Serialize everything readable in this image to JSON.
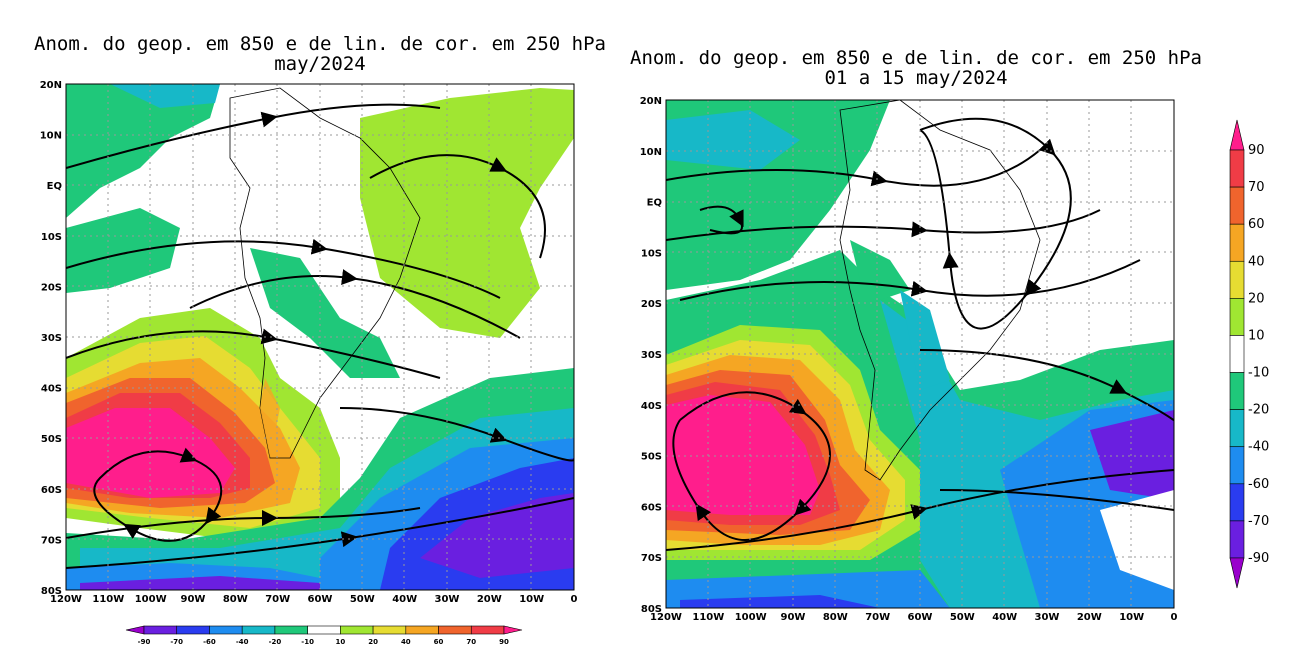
{
  "panel_left": {
    "title_line1": "Anom. do geop. em 850 e de lin. de cor. em 250 hPa",
    "title_line2": "may/2024"
  },
  "panel_right": {
    "title_line1": "Anom. do geop. em 850 e de lin. de cor. em 250 hPa",
    "title_line2": "01 a 15 may/2024"
  },
  "lat_labels": [
    "20N",
    "10N",
    "EQ",
    "10S",
    "20S",
    "30S",
    "40S",
    "50S",
    "60S",
    "70S",
    "80S"
  ],
  "lon_labels": [
    "120W",
    "110W",
    "100W",
    "90W",
    "80W",
    "70W",
    "60W",
    "50W",
    "40W",
    "30W",
    "20W",
    "10W",
    "0"
  ],
  "colorbar": {
    "levels": [
      "-90",
      "-70",
      "-60",
      "-40",
      "-20",
      "-10",
      "10",
      "20",
      "40",
      "60",
      "70",
      "90"
    ],
    "colors": {
      "lt_-90": "#9900cc",
      "-90_-70": "#6a1fe0",
      "-70_-60": "#2a3cf0",
      "-60_-40": "#1e8cf0",
      "-40_-20": "#17b8c8",
      "-20_-10": "#1fc87a",
      "-10_10": "#ffffff",
      "10_20": "#a0e632",
      "20_40": "#e6dc32",
      "40_60": "#f5a623",
      "60_70": "#f0642d",
      "70_90": "#f03c46",
      "gt_90": "#ff1e8c"
    }
  }
}
